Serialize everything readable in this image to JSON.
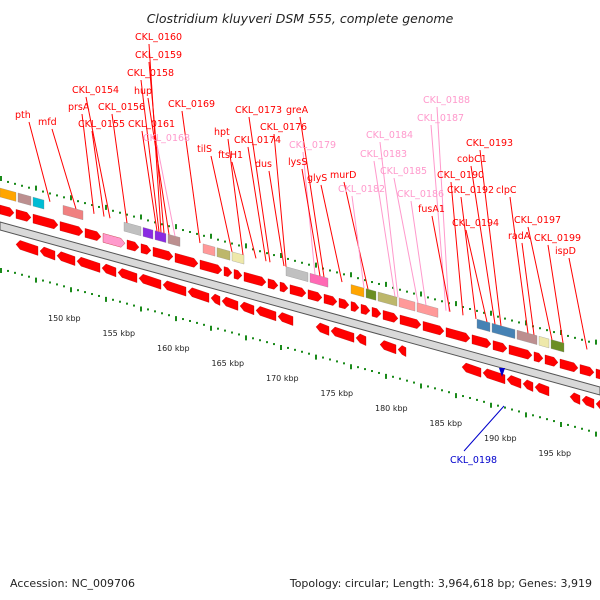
{
  "title": "Clostridium kluyveri DSM 555, complete genome",
  "footer": {
    "accession": "Accession: NC_009706",
    "stats": "Topology: circular; Length: 3,964,618 bp; Genes: 3,919"
  },
  "colors": {
    "forward_gene": "#ff0000",
    "ncrna": "#ff99cc",
    "highlight_label": "#0000cc",
    "tick": "#1a8a1a"
  },
  "kbp_labels": [
    "150 kbp",
    "155 kbp",
    "160 kbp",
    "165 kbp",
    "170 kbp",
    "175 kbp",
    "180 kbp",
    "185 kbp",
    "190 kbp",
    "195 kbp"
  ],
  "gene_labels": [
    {
      "text": "CKL_0160",
      "kind": "gene"
    },
    {
      "text": "CKL_0159",
      "kind": "gene"
    },
    {
      "text": "CKL_0158",
      "kind": "gene"
    },
    {
      "text": "hup",
      "kind": "gene"
    },
    {
      "text": "CKL_0154",
      "kind": "gene"
    },
    {
      "text": "prsA",
      "kind": "gene"
    },
    {
      "text": "CKL_0156",
      "kind": "gene"
    },
    {
      "text": "CKL_0169",
      "kind": "gene"
    },
    {
      "text": "pth",
      "kind": "gene"
    },
    {
      "text": "mfd",
      "kind": "gene"
    },
    {
      "text": "CKL_0155",
      "kind": "gene"
    },
    {
      "text": "CKL_0161",
      "kind": "gene"
    },
    {
      "text": "CKL_0168",
      "kind": "rna"
    },
    {
      "text": "CKL_0173",
      "kind": "gene"
    },
    {
      "text": "greA",
      "kind": "gene"
    },
    {
      "text": "CKL_0176",
      "kind": "gene"
    },
    {
      "text": "hpt",
      "kind": "gene"
    },
    {
      "text": "CKL_0174",
      "kind": "gene"
    },
    {
      "text": "tilS",
      "kind": "gene"
    },
    {
      "text": "ftsH1",
      "kind": "gene"
    },
    {
      "text": "CKL_0179",
      "kind": "rna"
    },
    {
      "text": "dus",
      "kind": "gene"
    },
    {
      "text": "lysS",
      "kind": "gene"
    },
    {
      "text": "glyS",
      "kind": "gene"
    },
    {
      "text": "murD",
      "kind": "gene"
    },
    {
      "text": "CKL_0188",
      "kind": "rna"
    },
    {
      "text": "CKL_0187",
      "kind": "rna"
    },
    {
      "text": "CKL_0184",
      "kind": "rna"
    },
    {
      "text": "CKL_0183",
      "kind": "rna"
    },
    {
      "text": "CKL_0185",
      "kind": "rna"
    },
    {
      "text": "CKL_0182",
      "kind": "rna"
    },
    {
      "text": "CKL_0186",
      "kind": "rna"
    },
    {
      "text": "fusA1",
      "kind": "gene"
    },
    {
      "text": "CKL_0193",
      "kind": "gene"
    },
    {
      "text": "cobC1",
      "kind": "gene"
    },
    {
      "text": "CKL_0190",
      "kind": "gene"
    },
    {
      "text": "CKL_0192",
      "kind": "gene"
    },
    {
      "text": "clpC",
      "kind": "gene"
    },
    {
      "text": "CKL_0194",
      "kind": "gene"
    },
    {
      "text": "CKL_0197",
      "kind": "gene"
    },
    {
      "text": "radA",
      "kind": "gene"
    },
    {
      "text": "CKL_0199",
      "kind": "gene"
    },
    {
      "text": "ispD",
      "kind": "gene"
    },
    {
      "text": "CKL_0198",
      "kind": "highlight"
    }
  ]
}
